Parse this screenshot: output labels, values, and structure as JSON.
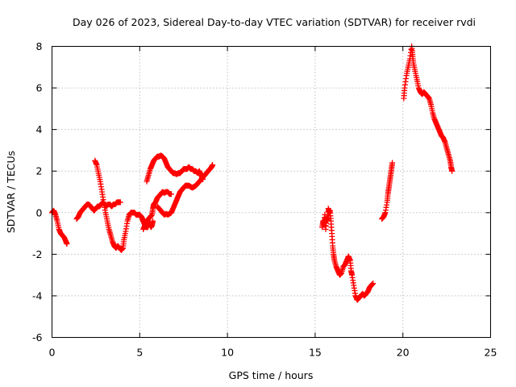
{
  "chart_data": {
    "type": "scatter",
    "title": "Day 026 of 2023, Sidereal Day-to-day VTEC variation (SDTVAR) for receiver rvdi",
    "xlabel": "GPS time / hours",
    "ylabel": "SDTVAR / TECUs",
    "xlim": [
      0,
      25
    ],
    "ylim": [
      -6,
      8
    ],
    "xticks": [
      0,
      5,
      10,
      15,
      20,
      25
    ],
    "yticks": [
      -6,
      -4,
      -2,
      0,
      2,
      4,
      6,
      8
    ],
    "grid": true,
    "marker": "+",
    "series": [
      {
        "name": "SDTVAR",
        "color": "#ff0000",
        "segments": [
          [
            [
              0.0,
              0.0
            ],
            [
              0.1,
              0.1
            ],
            [
              0.2,
              -0.1
            ],
            [
              0.3,
              -0.4
            ],
            [
              0.4,
              -0.8
            ],
            [
              0.5,
              -1.0
            ],
            [
              0.6,
              -1.1
            ],
            [
              0.7,
              -1.2
            ],
            [
              0.8,
              -1.4
            ],
            [
              0.85,
              -1.5
            ]
          ],
          [
            [
              1.4,
              -0.3
            ],
            [
              1.5,
              -0.2
            ],
            [
              1.6,
              0.0
            ],
            [
              1.7,
              0.1
            ],
            [
              1.8,
              0.2
            ],
            [
              1.9,
              0.3
            ],
            [
              2.0,
              0.4
            ],
            [
              2.1,
              0.4
            ],
            [
              2.2,
              0.3
            ],
            [
              2.3,
              0.2
            ],
            [
              2.4,
              0.1
            ],
            [
              2.5,
              0.2
            ],
            [
              2.6,
              0.3
            ],
            [
              2.7,
              0.3
            ],
            [
              2.8,
              0.4
            ],
            [
              2.9,
              0.5
            ],
            [
              3.0,
              0.4
            ],
            [
              3.1,
              0.3
            ],
            [
              3.2,
              0.4
            ],
            [
              3.3,
              0.4
            ],
            [
              3.4,
              0.3
            ],
            [
              3.5,
              0.4
            ],
            [
              3.6,
              0.4
            ],
            [
              3.7,
              0.5
            ],
            [
              3.8,
              0.5
            ],
            [
              3.9,
              0.5
            ]
          ],
          [
            [
              2.45,
              2.5
            ],
            [
              2.55,
              2.3
            ],
            [
              2.65,
              1.9
            ],
            [
              2.75,
              1.5
            ],
            [
              2.85,
              1.0
            ],
            [
              2.95,
              0.5
            ],
            [
              3.05,
              0.0
            ],
            [
              3.15,
              -0.4
            ],
            [
              3.25,
              -0.8
            ],
            [
              3.35,
              -1.1
            ],
            [
              3.45,
              -1.4
            ],
            [
              3.55,
              -1.6
            ],
            [
              3.65,
              -1.7
            ],
            [
              3.75,
              -1.6
            ],
            [
              3.85,
              -1.7
            ],
            [
              3.95,
              -1.8
            ],
            [
              4.05,
              -1.7
            ],
            [
              4.1,
              -1.3
            ],
            [
              4.2,
              -0.9
            ],
            [
              4.3,
              -0.4
            ],
            [
              4.4,
              -0.1
            ],
            [
              4.5,
              0.0
            ],
            [
              4.6,
              0.0
            ],
            [
              4.7,
              0.0
            ],
            [
              4.8,
              -0.1
            ],
            [
              4.9,
              -0.1
            ],
            [
              5.0,
              -0.1
            ],
            [
              5.1,
              -0.2
            ],
            [
              5.15,
              -0.3
            ],
            [
              5.2,
              -0.4
            ],
            [
              5.25,
              -0.5
            ],
            [
              5.3,
              -0.6
            ],
            [
              5.35,
              -0.7
            ],
            [
              5.45,
              -0.7
            ],
            [
              5.5,
              -0.6
            ],
            [
              5.55,
              -0.5
            ],
            [
              5.6,
              -0.6
            ],
            [
              5.65,
              -0.7
            ],
            [
              5.7,
              -0.6
            ],
            [
              5.75,
              -0.4
            ]
          ],
          [
            [
              5.2,
              -0.8
            ],
            [
              5.3,
              -0.6
            ],
            [
              5.4,
              -0.4
            ],
            [
              5.5,
              -0.3
            ],
            [
              5.6,
              -0.2
            ],
            [
              5.7,
              -0.1
            ],
            [
              5.75,
              0.2
            ],
            [
              5.8,
              0.4
            ],
            [
              5.9,
              0.5
            ],
            [
              6.0,
              0.7
            ],
            [
              6.1,
              0.8
            ],
            [
              6.2,
              0.9
            ],
            [
              6.3,
              1.0
            ],
            [
              6.4,
              0.95
            ],
            [
              6.5,
              1.0
            ],
            [
              6.6,
              1.0
            ],
            [
              6.7,
              0.9
            ],
            [
              6.8,
              0.9
            ]
          ],
          [
            [
              5.4,
              1.5
            ],
            [
              5.5,
              1.8
            ],
            [
              5.6,
              2.1
            ],
            [
              5.7,
              2.3
            ],
            [
              5.8,
              2.5
            ],
            [
              5.9,
              2.6
            ],
            [
              6.0,
              2.7
            ],
            [
              6.1,
              2.7
            ],
            [
              6.2,
              2.75
            ],
            [
              6.3,
              2.7
            ],
            [
              6.4,
              2.6
            ],
            [
              6.5,
              2.4
            ],
            [
              6.6,
              2.2
            ],
            [
              6.7,
              2.1
            ],
            [
              6.8,
              2.0
            ],
            [
              6.9,
              1.9
            ],
            [
              7.0,
              1.9
            ],
            [
              7.1,
              1.85
            ],
            [
              7.2,
              1.9
            ],
            [
              7.3,
              1.9
            ],
            [
              7.4,
              2.0
            ],
            [
              7.5,
              2.1
            ],
            [
              7.6,
              2.1
            ],
            [
              7.7,
              2.1
            ],
            [
              7.8,
              2.2
            ],
            [
              7.9,
              2.1
            ],
            [
              8.0,
              2.1
            ],
            [
              8.1,
              2.0
            ],
            [
              8.2,
              2.0
            ],
            [
              8.3,
              1.9
            ],
            [
              8.4,
              2.0
            ],
            [
              8.5,
              1.8
            ],
            [
              8.6,
              1.6
            ]
          ],
          [
            [
              6.0,
              0.3
            ],
            [
              6.1,
              0.2
            ],
            [
              6.2,
              0.1
            ],
            [
              6.3,
              0.0
            ],
            [
              6.4,
              -0.1
            ],
            [
              6.5,
              -0.05
            ],
            [
              6.6,
              -0.1
            ],
            [
              6.7,
              -0.05
            ],
            [
              6.8,
              0.0
            ],
            [
              6.9,
              0.2
            ],
            [
              7.0,
              0.4
            ],
            [
              7.1,
              0.6
            ],
            [
              7.2,
              0.8
            ],
            [
              7.3,
              1.0
            ],
            [
              7.4,
              1.1
            ],
            [
              7.5,
              1.2
            ],
            [
              7.6,
              1.3
            ],
            [
              7.7,
              1.3
            ],
            [
              7.8,
              1.3
            ],
            [
              7.9,
              1.25
            ],
            [
              8.0,
              1.2
            ],
            [
              8.1,
              1.25
            ],
            [
              8.2,
              1.3
            ],
            [
              8.3,
              1.4
            ],
            [
              8.4,
              1.5
            ],
            [
              8.5,
              1.6
            ],
            [
              8.6,
              1.7
            ],
            [
              8.7,
              1.8
            ],
            [
              8.8,
              1.9
            ],
            [
              8.9,
              2.0
            ],
            [
              9.0,
              2.1
            ],
            [
              9.1,
              2.2
            ],
            [
              9.15,
              2.3
            ]
          ],
          [
            [
              15.4,
              -0.7
            ],
            [
              15.45,
              -0.4
            ],
            [
              15.5,
              -0.6
            ],
            [
              15.55,
              -0.1
            ],
            [
              15.6,
              -0.8
            ],
            [
              15.65,
              -0.2
            ],
            [
              15.7,
              -0.4
            ],
            [
              15.75,
              0.2
            ],
            [
              15.8,
              0.0
            ],
            [
              15.85,
              0.1
            ],
            [
              15.9,
              -0.4
            ],
            [
              15.95,
              -1.0
            ],
            [
              16.0,
              -1.6
            ],
            [
              16.05,
              -2.0
            ],
            [
              16.1,
              -2.3
            ],
            [
              16.2,
              -2.6
            ],
            [
              16.3,
              -2.8
            ],
            [
              16.4,
              -3.0
            ],
            [
              16.5,
              -2.9
            ],
            [
              16.6,
              -2.6
            ],
            [
              16.7,
              -2.5
            ],
            [
              16.8,
              -2.3
            ],
            [
              16.9,
              -2.1
            ],
            [
              17.0,
              -2.3
            ],
            [
              17.05,
              -2.8
            ],
            [
              17.1,
              -3.0
            ],
            [
              17.2,
              -3.5
            ],
            [
              17.3,
              -4.0
            ],
            [
              17.4,
              -4.2
            ],
            [
              17.5,
              -4.1
            ],
            [
              17.6,
              -4.0
            ],
            [
              17.7,
              -3.9
            ],
            [
              17.8,
              -4.0
            ],
            [
              17.9,
              -3.9
            ],
            [
              18.0,
              -3.8
            ],
            [
              18.1,
              -3.6
            ],
            [
              18.2,
              -3.5
            ],
            [
              18.3,
              -3.4
            ]
          ],
          [
            [
              18.8,
              -0.3
            ],
            [
              18.9,
              -0.2
            ],
            [
              19.0,
              0.0
            ],
            [
              19.1,
              0.5
            ],
            [
              19.15,
              0.9
            ],
            [
              19.2,
              1.2
            ],
            [
              19.25,
              1.5
            ],
            [
              19.3,
              1.8
            ],
            [
              19.35,
              2.1
            ],
            [
              19.4,
              2.4
            ]
          ],
          [
            [
              20.05,
              5.5
            ],
            [
              20.1,
              6.0
            ],
            [
              20.2,
              6.6
            ],
            [
              20.3,
              7.0
            ],
            [
              20.4,
              7.4
            ],
            [
              20.5,
              8.0
            ],
            [
              20.55,
              7.6
            ],
            [
              20.6,
              7.2
            ],
            [
              20.7,
              6.8
            ],
            [
              20.8,
              6.4
            ],
            [
              20.9,
              6.0
            ],
            [
              21.0,
              5.8
            ],
            [
              21.1,
              5.7
            ],
            [
              21.2,
              5.8
            ],
            [
              21.3,
              5.7
            ],
            [
              21.4,
              5.6
            ],
            [
              21.5,
              5.5
            ],
            [
              21.6,
              5.2
            ],
            [
              21.7,
              4.8
            ],
            [
              21.8,
              4.5
            ],
            [
              21.9,
              4.3
            ],
            [
              22.0,
              4.1
            ],
            [
              22.1,
              3.9
            ],
            [
              22.2,
              3.7
            ],
            [
              22.3,
              3.6
            ],
            [
              22.4,
              3.4
            ],
            [
              22.5,
              3.1
            ],
            [
              22.6,
              2.8
            ],
            [
              22.7,
              2.5
            ],
            [
              22.75,
              2.2
            ],
            [
              22.8,
              2.0
            ]
          ]
        ]
      }
    ]
  }
}
